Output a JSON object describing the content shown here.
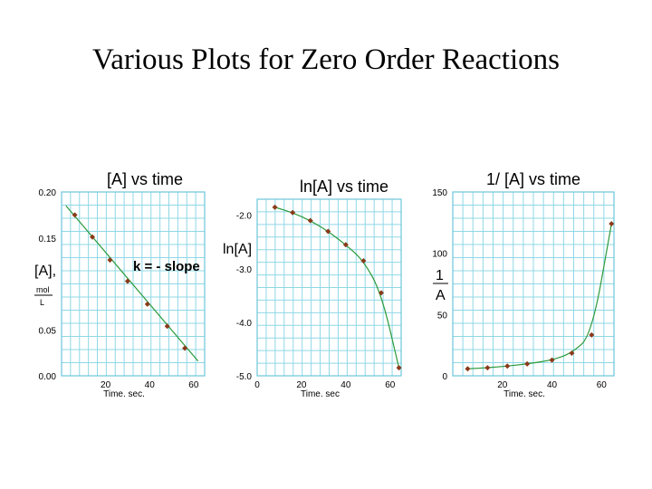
{
  "title": "Various Plots for Zero Order Reactions",
  "colors": {
    "grid": "#8fd8e6",
    "frame": "#6cc6da",
    "line": "#2a9a3a",
    "point": "#8a3a1a"
  },
  "chart_data": [
    {
      "type": "scatter",
      "title": "[A] vs time",
      "xlabel": "Time. sec.",
      "ylabel": "[A],",
      "ylabel_units": [
        "mol",
        "L"
      ],
      "xlim": [
        0,
        65
      ],
      "ylim": [
        0,
        0.2
      ],
      "xticks": [
        "20",
        "40",
        "60"
      ],
      "yticks": [
        "0.00",
        "0.05",
        "0.15",
        "0.20"
      ],
      "ytick_values": [
        0,
        0.05,
        0.15,
        0.2
      ],
      "annotation": "k = - slope",
      "grid": true,
      "series": [
        {
          "x": [
            6,
            14,
            22,
            30,
            39,
            48,
            56
          ],
          "y": [
            0.175,
            0.151,
            0.126,
            0.103,
            0.078,
            0.054,
            0.03
          ],
          "fit_x": [
            2,
            62
          ],
          "fit_y": [
            0.185,
            0.016
          ]
        }
      ]
    },
    {
      "type": "scatter",
      "title": "ln[A] vs time",
      "xlabel": "Time. sec",
      "ylabel": "ln[A]",
      "xlim": [
        0,
        65
      ],
      "ylim": [
        -5.0,
        -1.7
      ],
      "xticks": [
        "0",
        "20",
        "40",
        "60"
      ],
      "xtick_values": [
        0,
        20,
        40,
        60
      ],
      "yticks": [
        "-2.0",
        "-3.0",
        "-4.0",
        "-5.0"
      ],
      "ytick_values": [
        -2.0,
        -3.0,
        -4.0,
        -5.0
      ],
      "grid": true,
      "series": [
        {
          "x": [
            8,
            16,
            24,
            32,
            40,
            48,
            56,
            64
          ],
          "y": [
            -1.85,
            -1.95,
            -2.1,
            -2.3,
            -2.55,
            -2.85,
            -3.45,
            -4.85
          ]
        }
      ]
    },
    {
      "type": "scatter",
      "title": "1/ [A] vs time",
      "xlabel": "Time. sec.",
      "ylabel_fraction": [
        "1",
        "A"
      ],
      "xlim": [
        0,
        65
      ],
      "ylim": [
        0,
        150
      ],
      "xticks": [
        "20",
        "40",
        "60"
      ],
      "yticks": [
        "0",
        "50",
        "100",
        "150"
      ],
      "ytick_values": [
        0,
        50,
        100,
        150
      ],
      "grid": true,
      "series": [
        {
          "x": [
            6,
            14,
            22,
            30,
            40,
            48,
            56,
            64
          ],
          "y": [
            5.7,
            6.6,
            7.9,
            9.7,
            12.8,
            18.5,
            33.3,
            124
          ]
        }
      ]
    }
  ]
}
